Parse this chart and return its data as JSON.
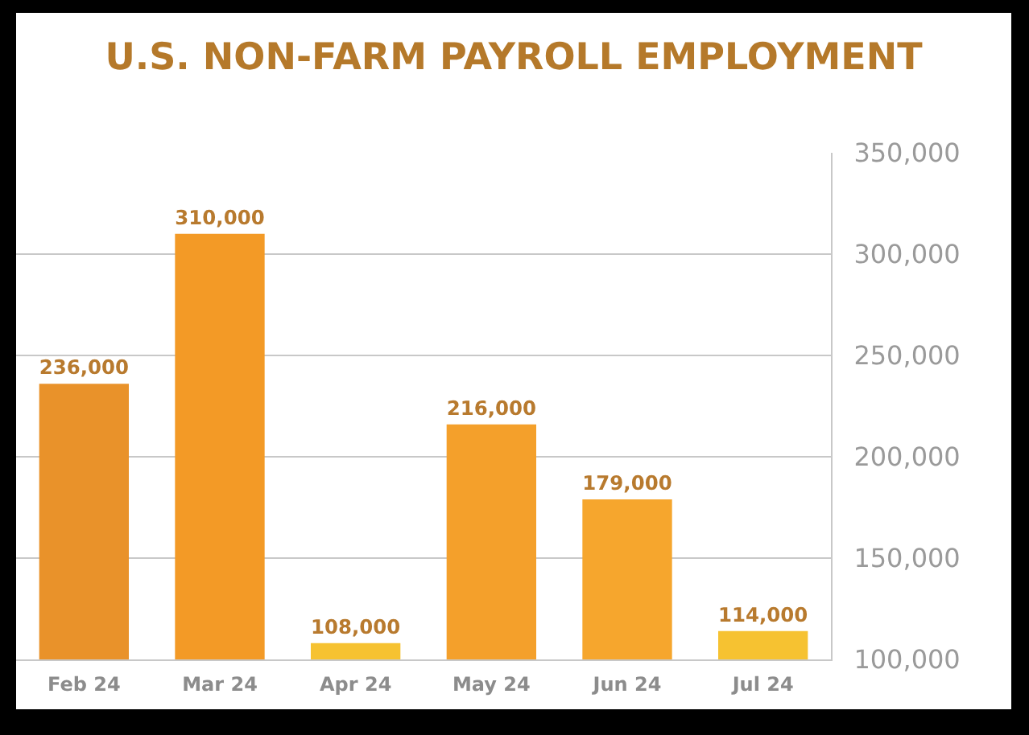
{
  "chart_data": {
    "type": "bar",
    "title": "U.S. NON-FARM PAYROLL EMPLOYMENT",
    "categories": [
      "Feb 24",
      "Mar 24",
      "Apr 24",
      "May 24",
      "Jun 24",
      "Jul 24"
    ],
    "values": [
      236000,
      310000,
      108000,
      216000,
      179000,
      114000
    ],
    "value_labels": [
      "236,000",
      "310,000",
      "108,000",
      "216,000",
      "179,000",
      "114,000"
    ],
    "colors": [
      "#e9922a",
      "#f39a26",
      "#f6c231",
      "#f4a02b",
      "#f6a62d",
      "#f6c231"
    ],
    "ylim": [
      100000,
      350000
    ],
    "yticks": [
      {
        "value": 100000,
        "label": "100,000"
      },
      {
        "value": 150000,
        "label": "150,000"
      },
      {
        "value": 200000,
        "label": "200,000"
      },
      {
        "value": 250000,
        "label": "250,000"
      },
      {
        "value": 300000,
        "label": "300,000"
      },
      {
        "value": 350000,
        "label": "350,000"
      }
    ],
    "grid": "y"
  }
}
